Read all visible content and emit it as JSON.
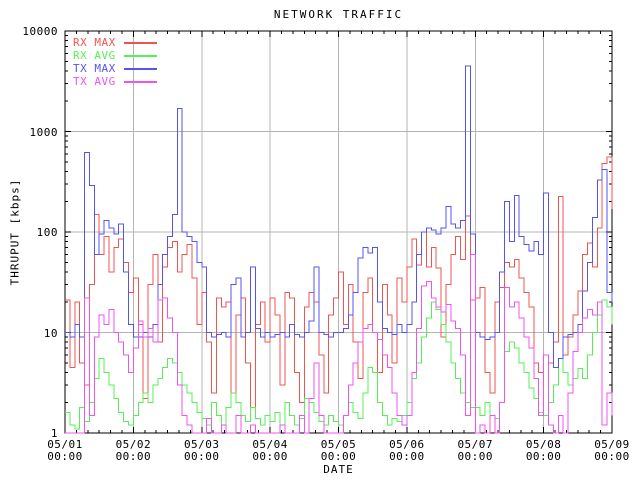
{
  "title": "NETWORK TRAFFIC",
  "axes": {
    "y_label": "THRUPUT [kbps]",
    "x_label": "DATE",
    "y_tick_labels": [
      "10000",
      "1000",
      "100",
      "10",
      "1"
    ],
    "y_scale": "log",
    "x_minor_ticks_per_day": 6,
    "y_minor_ticks": "log decades 2-9"
  },
  "colors": {
    "background": "#ffffff",
    "frame": "#000000",
    "grid": "#b4b4b4",
    "text": "#000000",
    "rx_max": "#f05450",
    "rx_avg": "#54f054",
    "tx_max": "#5454f0",
    "tx_avg": "#f054f0"
  },
  "chart_data": {
    "type": "line",
    "line_style": "step-after",
    "title": "NETWORK TRAFFIC",
    "xlabel": "DATE",
    "ylabel": "THRUPUT [kbps]",
    "ylim": [
      1,
      10000
    ],
    "y_scale": "log",
    "grid": true,
    "legend_position": "top-left",
    "points_per_day": 14,
    "x_tick_labels": [
      {
        "date": "05/01",
        "time": "00:00"
      },
      {
        "date": "05/02",
        "time": "00:00"
      },
      {
        "date": "05/03",
        "time": "00:00"
      },
      {
        "date": "05/04",
        "time": "00:00"
      },
      {
        "date": "05/05",
        "time": "00:00"
      },
      {
        "date": "05/06",
        "time": "00:00"
      },
      {
        "date": "05/07",
        "time": "00:00"
      },
      {
        "date": "05/08",
        "time": "00:00"
      },
      {
        "date": "05/09",
        "time": "00:00"
      }
    ],
    "series": [
      {
        "name": "RX MAX",
        "color": "#f05450",
        "values": [
          21,
          4.5,
          20,
          5,
          3,
          30,
          150,
          60,
          90,
          40,
          70,
          85,
          50,
          25,
          35,
          12,
          2.2,
          30,
          60,
          8,
          45,
          70,
          80,
          40,
          60,
          75,
          35,
          12,
          25,
          8,
          2.5,
          22,
          18,
          20,
          2.5,
          15,
          22,
          5,
          1.8,
          12,
          20,
          8,
          22,
          15,
          3,
          25,
          22,
          4,
          2,
          18,
          25,
          20,
          6,
          2.5,
          15,
          22,
          40,
          12,
          30,
          8,
          3.5,
          25,
          35,
          10,
          4,
          30,
          15,
          5,
          35,
          20,
          45,
          85,
          47,
          100,
          45,
          70,
          44,
          9,
          30,
          60,
          90,
          53,
          145,
          21,
          22,
          28,
          4,
          2.5,
          20,
          28,
          50,
          45,
          53,
          35,
          25,
          18,
          5,
          4,
          6,
          5,
          8,
          225,
          6,
          9,
          15,
          26,
          60,
          78,
          45,
          110,
          480,
          560,
          170
        ]
      },
      {
        "name": "RX AVG",
        "color": "#54f054",
        "values": [
          1.6,
          1.2,
          1.1,
          1.8,
          1.3,
          2,
          3.5,
          5.5,
          4,
          3,
          2.2,
          1.6,
          1.3,
          1.2,
          1.5,
          2,
          2.5,
          2,
          3,
          3.5,
          4.5,
          5.5,
          5,
          4,
          3,
          2.5,
          2,
          1.6,
          1.4,
          1.2,
          2,
          1.5,
          1.2,
          1.8,
          2.5,
          2,
          1.5,
          1.3,
          1.8,
          1.4,
          1.2,
          1.5,
          1.3,
          1.6,
          1.2,
          2,
          1.5,
          1.2,
          1.4,
          2.2,
          2,
          1.6,
          1.3,
          1.2,
          1.5,
          1.3,
          1.2,
          1.5,
          2,
          1.6,
          1.4,
          2.5,
          4.5,
          4,
          2,
          1.5,
          1.2,
          1.4,
          1.3,
          1.5,
          2,
          3.5,
          5,
          9,
          14,
          20,
          17,
          12,
          8,
          5,
          3.5,
          2.5,
          2,
          1.8,
          1.8,
          1.5,
          2,
          1.5,
          1.4,
          2,
          6.5,
          8,
          7,
          5,
          4,
          2.8,
          2.2,
          1.6,
          1.5,
          2,
          3,
          5.5,
          4,
          3,
          3.5,
          4.4,
          3.5,
          6,
          10,
          15,
          21,
          18,
          12
        ]
      },
      {
        "name": "TX MAX",
        "color": "#5454f0",
        "values": [
          10,
          9,
          12,
          9,
          620,
          290,
          60,
          95,
          130,
          110,
          95,
          120,
          40,
          12,
          9,
          9,
          10,
          9,
          12,
          30,
          60,
          90,
          150,
          1700,
          100,
          90,
          80,
          50,
          45,
          10,
          9,
          9.5,
          10,
          9,
          30,
          35,
          9,
          10,
          45,
          11,
          9,
          10,
          9,
          9.5,
          10,
          9,
          12,
          9.5,
          9,
          10,
          13,
          45,
          10,
          9.5,
          9,
          10,
          10,
          11,
          15,
          25,
          55,
          70,
          62,
          70,
          20,
          11,
          10,
          9.5,
          12,
          10,
          12,
          20,
          60,
          100,
          110,
          105,
          95,
          110,
          180,
          120,
          110,
          130,
          4500,
          95,
          10,
          9,
          8.5,
          9,
          10,
          40,
          200,
          80,
          230,
          90,
          75,
          65,
          80,
          60,
          245,
          10,
          4.5,
          5.5,
          9,
          9.5,
          10,
          12,
          26,
          50,
          140,
          330,
          420,
          25,
          20
        ]
      },
      {
        "name": "TX AVG",
        "color": "#f054f0",
        "values": [
          1,
          1,
          1,
          1,
          22,
          1.5,
          9,
          15,
          12,
          17,
          10,
          8,
          6,
          4,
          7,
          13,
          9,
          11,
          8,
          21,
          22,
          14,
          10,
          3,
          1.5,
          1.2,
          1,
          1,
          1,
          1.4,
          1,
          1,
          1.2,
          1,
          1,
          1.5,
          1,
          1,
          1.2,
          1,
          1,
          1,
          1,
          1,
          1.2,
          1,
          1,
          1,
          1.5,
          1,
          2.2,
          5,
          1.5,
          1,
          1,
          1,
          1,
          1.5,
          3,
          5,
          8,
          11,
          12,
          10,
          8.5,
          6,
          4.5,
          2.5,
          1.5,
          1.2,
          1.5,
          4,
          11,
          29,
          32,
          22,
          18,
          16,
          19,
          13,
          11,
          6,
          1.5,
          60,
          1,
          1.2,
          1,
          1.5,
          1,
          2,
          28,
          18,
          20,
          14,
          9,
          7,
          3.5,
          1.5,
          6,
          1.2,
          1,
          1.5,
          1,
          2.5,
          6.5,
          10,
          14,
          17,
          15,
          20,
          1.2,
          2.5,
          1.5
        ]
      }
    ]
  }
}
